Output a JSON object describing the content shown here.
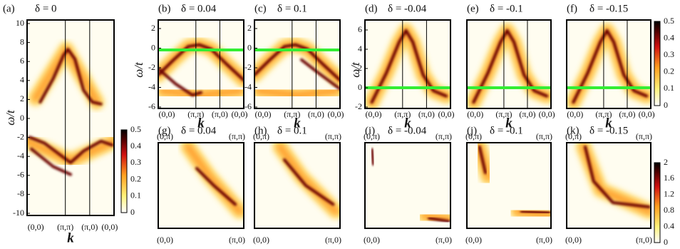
{
  "panels": [
    {
      "label": "(a)",
      "title": "δ = 0"
    },
    {
      "label": "(b)",
      "title": "δ = 0.04"
    },
    {
      "label": "(c)",
      "title": "δ = 0.1"
    },
    {
      "label": "(d)",
      "title": "δ = -0.04"
    },
    {
      "label": "(e)",
      "title": "δ = -0.1"
    },
    {
      "label": "(f)",
      "title": "δ = -0.15"
    },
    {
      "label": "(g)",
      "title": "δ = 0.04"
    },
    {
      "label": "(h)",
      "title": "δ = 0.1"
    },
    {
      "label": "(i)",
      "title": "δ = -0.04"
    },
    {
      "label": "(j)",
      "title": "δ = -0.1"
    },
    {
      "label": "(k)",
      "title": "δ = -0.15"
    }
  ],
  "axis_labels": {
    "omega": "ω/t",
    "k": "k"
  },
  "yticks": {
    "a": [
      10,
      8,
      6,
      4,
      2,
      0,
      -2,
      -4,
      -6,
      -8,
      -10
    ],
    "bc": [
      2,
      0,
      -2,
      -4,
      -6
    ],
    "def": [
      6,
      4,
      2,
      0,
      -2
    ]
  },
  "k_path": [
    "(0,0)",
    "(π,π)",
    "(π,0)",
    "(0,0)"
  ],
  "corners": {
    "top_left": "(0,π)",
    "top_right": "(π,π)",
    "bottom_left": "(0,0)",
    "bottom_right": "(π,0)"
  },
  "colorbars": {
    "spectral": [
      0.5,
      0.4,
      0.3,
      0.2,
      0.1,
      0
    ],
    "fermi_surface": [
      2,
      1.6,
      1.2,
      0.8,
      0.4,
      0
    ]
  }
}
